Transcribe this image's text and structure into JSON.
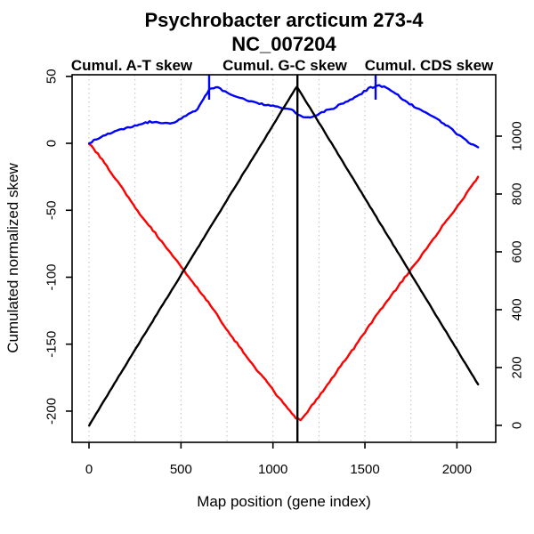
{
  "chart_data": {
    "type": "line",
    "title": "Psychrobacter arcticum 273-4",
    "subtitle": "NC_007204",
    "xlabel": "Map position (gene index)",
    "ylabel": "Cumulated normalized skew",
    "legend": [
      {
        "label": "Cumul. A-T skew",
        "color": "#ff0000"
      },
      {
        "label": "Cumul. G-C skew",
        "color": "#0000ff"
      },
      {
        "label": "Cumul. CDS skew",
        "color": "#000000"
      }
    ],
    "x_axis": {
      "range": [
        -92,
        2211
      ],
      "ticks": [
        0,
        500,
        1000,
        1500,
        2000
      ],
      "gridlines": [
        0,
        250,
        500,
        750,
        1000,
        1250,
        1500,
        1750,
        2000
      ],
      "grid_color": "#bebebe"
    },
    "left_axis": {
      "range": [
        -223.3,
        51.2
      ],
      "ticks": [
        50,
        0,
        -50,
        -100,
        -150,
        -200
      ]
    },
    "right_axis": {
      "range": [
        -58.7,
        1212.3
      ],
      "ticks": [
        0,
        200,
        400,
        600,
        800,
        1000
      ]
    },
    "series": [
      {
        "name": "Cumul. A-T skew",
        "color": "#ff0000",
        "axis": "left",
        "points": [
          [
            1,
            0
          ],
          [
            60,
            -10
          ],
          [
            120,
            -22
          ],
          [
            180,
            -33
          ],
          [
            240,
            -46
          ],
          [
            300,
            -57
          ],
          [
            360,
            -67
          ],
          [
            420,
            -78
          ],
          [
            480,
            -88
          ],
          [
            540,
            -99
          ],
          [
            600,
            -110
          ],
          [
            660,
            -121
          ],
          [
            720,
            -133
          ],
          [
            780,
            -145
          ],
          [
            840,
            -156
          ],
          [
            900,
            -167
          ],
          [
            960,
            -177
          ],
          [
            1020,
            -188
          ],
          [
            1080,
            -198
          ],
          [
            1125,
            -205
          ],
          [
            1150,
            -207
          ],
          [
            1200,
            -198
          ],
          [
            1260,
            -187
          ],
          [
            1320,
            -176
          ],
          [
            1380,
            -164
          ],
          [
            1440,
            -153
          ],
          [
            1500,
            -141
          ],
          [
            1560,
            -129
          ],
          [
            1620,
            -118
          ],
          [
            1680,
            -107
          ],
          [
            1740,
            -96
          ],
          [
            1800,
            -85
          ],
          [
            1860,
            -74
          ],
          [
            1920,
            -62
          ],
          [
            1980,
            -51
          ],
          [
            2040,
            -40
          ],
          [
            2080,
            -32
          ],
          [
            2115,
            -25
          ]
        ]
      },
      {
        "name": "Cumul. G-C skew",
        "color": "#0000ff",
        "axis": "left",
        "points": [
          [
            1,
            0
          ],
          [
            40,
            3
          ],
          [
            90,
            6
          ],
          [
            140,
            9
          ],
          [
            200,
            11
          ],
          [
            260,
            13.5
          ],
          [
            330,
            16
          ],
          [
            390,
            15
          ],
          [
            440,
            14.5
          ],
          [
            490,
            17.5
          ],
          [
            540,
            21.5
          ],
          [
            590,
            25
          ],
          [
            620,
            33
          ],
          [
            655,
            40.5
          ],
          [
            700,
            41.5
          ],
          [
            740,
            38.5
          ],
          [
            800,
            35
          ],
          [
            870,
            31.5
          ],
          [
            950,
            29
          ],
          [
            1050,
            26.5
          ],
          [
            1110,
            24.5
          ],
          [
            1150,
            20.5
          ],
          [
            1190,
            19.5
          ],
          [
            1240,
            21
          ],
          [
            1290,
            24.5
          ],
          [
            1330,
            26
          ],
          [
            1370,
            29.5
          ],
          [
            1420,
            32.5
          ],
          [
            1470,
            36
          ],
          [
            1520,
            41
          ],
          [
            1565,
            43
          ],
          [
            1605,
            42.5
          ],
          [
            1655,
            38.5
          ],
          [
            1705,
            33
          ],
          [
            1755,
            28.5
          ],
          [
            1805,
            25
          ],
          [
            1855,
            21
          ],
          [
            1905,
            17
          ],
          [
            1950,
            13
          ],
          [
            2000,
            7
          ],
          [
            2050,
            2
          ],
          [
            2115,
            -3
          ]
        ]
      },
      {
        "name": "Cumul. CDS skew",
        "color": "#000000",
        "axis": "right",
        "points": [
          [
            1,
            0
          ],
          [
            150,
            157
          ],
          [
            300,
            313
          ],
          [
            450,
            468
          ],
          [
            600,
            623
          ],
          [
            750,
            779
          ],
          [
            900,
            934
          ],
          [
            1050,
            1090
          ],
          [
            1130,
            1172
          ],
          [
            1250,
            1047
          ],
          [
            1400,
            890
          ],
          [
            1550,
            733
          ],
          [
            1700,
            576
          ],
          [
            1850,
            419
          ],
          [
            2000,
            262
          ],
          [
            2115,
            142
          ]
        ]
      }
    ],
    "markers": {
      "max_vline": {
        "x": 1133,
        "color": "#000000"
      },
      "top_ticks": [
        {
          "x": 653,
          "color": "#0000ff"
        },
        {
          "x": 1558,
          "color": "#0000ff"
        }
      ]
    }
  }
}
